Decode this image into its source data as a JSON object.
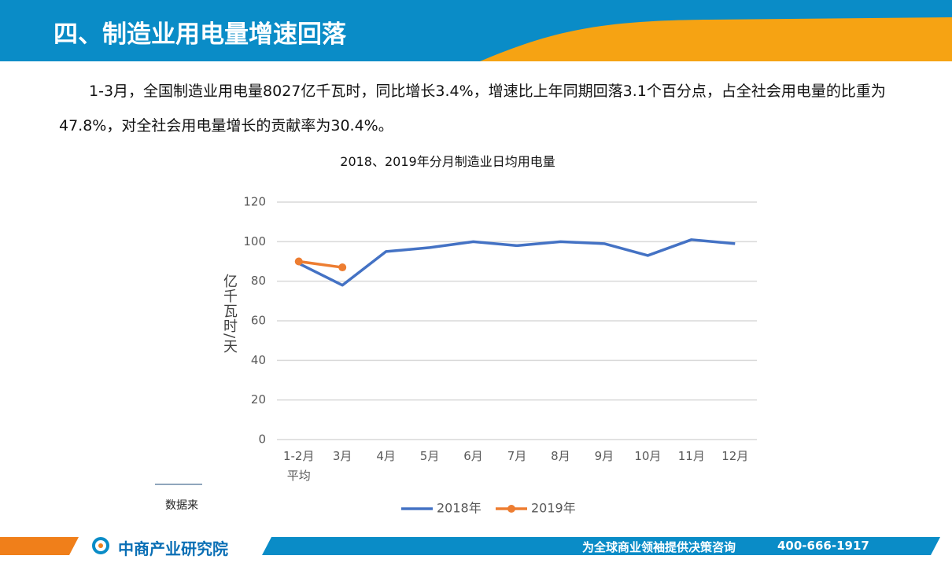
{
  "header": {
    "title": "四、制造业用电量增速回落"
  },
  "paragraph": "1-3月，全国制造业用电量8027亿千瓦时，同比增长3.4%，增速比上年同期回落3.1个百分点，占全社会用电量的比重为47.8%，对全社会用电量增长的贡献率为30.4%。",
  "chart_data": {
    "type": "line",
    "title": "2018、2019年分月制造业日均用电量",
    "y_label": "亿千瓦时/天",
    "categories": [
      "1-2月平均",
      "3月",
      "4月",
      "5月",
      "6月",
      "7月",
      "8月",
      "9月",
      "10月",
      "11月",
      "12月"
    ],
    "series": [
      {
        "name": "2018年",
        "color": "#4472c4",
        "values": [
          89,
          78,
          95,
          97,
          100,
          98,
          100,
          99,
          93,
          101,
          99
        ]
      },
      {
        "name": "2019年",
        "color": "#ed7d31",
        "values": [
          90,
          87,
          null,
          null,
          null,
          null,
          null,
          null,
          null,
          null,
          null
        ]
      }
    ],
    "ylim": [
      0,
      120
    ],
    "yticks": [
      0,
      20,
      40,
      60,
      80,
      100,
      120
    ],
    "grid": true,
    "legend": "bottom"
  },
  "source": "数据来",
  "footer": {
    "logo": "中商产业研究院",
    "slogan": "为全球商业领袖提供决策咨询",
    "phone": "400-666-1917"
  }
}
